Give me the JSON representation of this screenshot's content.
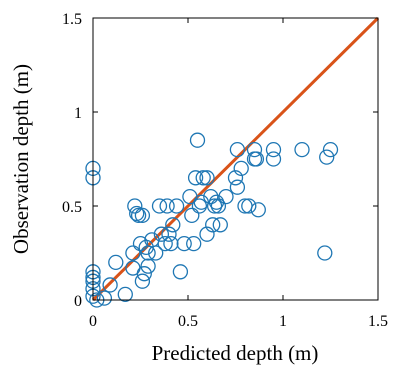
{
  "chart_data": {
    "type": "scatter",
    "title": "",
    "xlabel": "Predicted depth (m)",
    "ylabel": "Observation depth (m)",
    "xlim": [
      0,
      1.5
    ],
    "ylim": [
      0,
      1.5
    ],
    "xticks": [
      0,
      0.5,
      1,
      1.5
    ],
    "yticks": [
      0,
      0.5,
      1,
      1.5
    ],
    "xtick_labels": [
      "0",
      "0.5",
      "1",
      "1.5"
    ],
    "ytick_labels": [
      "0",
      "0.5",
      "1",
      "1.5"
    ],
    "grid": false,
    "legend": "none",
    "marker": "open-circle",
    "colors": {
      "points": "#1f77b4",
      "reference_line": "#d95319",
      "axes": "#000000"
    },
    "reference_line": {
      "x": [
        0,
        1.5
      ],
      "y": [
        0,
        1.5
      ]
    },
    "series": [
      {
        "points": [
          [
            0.0,
            0.7
          ],
          [
            0.0,
            0.65
          ],
          [
            0.0,
            0.15
          ],
          [
            0.0,
            0.12
          ],
          [
            0.0,
            0.1
          ],
          [
            0.0,
            0.06
          ],
          [
            0.0,
            0.02
          ],
          [
            0.02,
            0.0
          ],
          [
            0.06,
            0.01
          ],
          [
            0.09,
            0.08
          ],
          [
            0.12,
            0.2
          ],
          [
            0.17,
            0.03
          ],
          [
            0.21,
            0.17
          ],
          [
            0.21,
            0.25
          ],
          [
            0.22,
            0.5
          ],
          [
            0.23,
            0.46
          ],
          [
            0.24,
            0.45
          ],
          [
            0.26,
            0.45
          ],
          [
            0.25,
            0.3
          ],
          [
            0.26,
            0.1
          ],
          [
            0.27,
            0.14
          ],
          [
            0.28,
            0.28
          ],
          [
            0.29,
            0.25
          ],
          [
            0.29,
            0.18
          ],
          [
            0.31,
            0.32
          ],
          [
            0.33,
            0.25
          ],
          [
            0.35,
            0.5
          ],
          [
            0.36,
            0.35
          ],
          [
            0.38,
            0.3
          ],
          [
            0.39,
            0.5
          ],
          [
            0.4,
            0.35
          ],
          [
            0.41,
            0.3
          ],
          [
            0.42,
            0.4
          ],
          [
            0.44,
            0.5
          ],
          [
            0.46,
            0.15
          ],
          [
            0.48,
            0.3
          ],
          [
            0.51,
            0.55
          ],
          [
            0.52,
            0.45
          ],
          [
            0.53,
            0.3
          ],
          [
            0.54,
            0.65
          ],
          [
            0.55,
            0.85
          ],
          [
            0.56,
            0.5
          ],
          [
            0.57,
            0.52
          ],
          [
            0.58,
            0.65
          ],
          [
            0.6,
            0.65
          ],
          [
            0.6,
            0.35
          ],
          [
            0.62,
            0.55
          ],
          [
            0.63,
            0.4
          ],
          [
            0.64,
            0.5
          ],
          [
            0.65,
            0.52
          ],
          [
            0.66,
            0.5
          ],
          [
            0.67,
            0.4
          ],
          [
            0.7,
            0.55
          ],
          [
            0.75,
            0.65
          ],
          [
            0.76,
            0.6
          ],
          [
            0.76,
            0.8
          ],
          [
            0.78,
            0.7
          ],
          [
            0.8,
            0.5
          ],
          [
            0.82,
            0.5
          ],
          [
            0.85,
            0.75
          ],
          [
            0.85,
            0.8
          ],
          [
            0.86,
            0.75
          ],
          [
            0.87,
            0.48
          ],
          [
            0.95,
            0.8
          ],
          [
            0.95,
            0.75
          ],
          [
            1.1,
            0.8
          ],
          [
            1.22,
            0.25
          ],
          [
            1.23,
            0.76
          ],
          [
            1.25,
            0.8
          ]
        ]
      }
    ]
  }
}
